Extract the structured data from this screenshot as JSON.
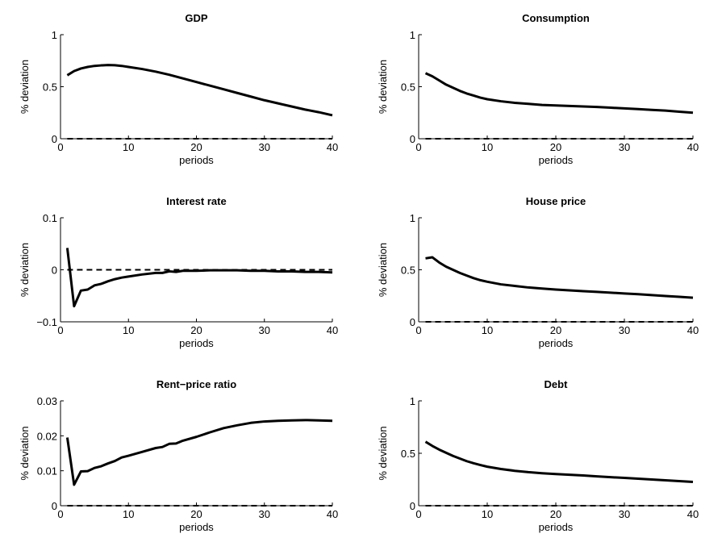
{
  "chart_data": [
    {
      "type": "line",
      "title": "GDP",
      "xlabel": "periods",
      "ylabel": "% deviation",
      "xlim": [
        0,
        40
      ],
      "ylim": [
        0,
        1
      ],
      "x_ticks": [
        "0",
        "10",
        "20",
        "30",
        "40"
      ],
      "y_ticks": [
        "0",
        "0.5",
        "1"
      ],
      "x": [
        1,
        2,
        3,
        4,
        5,
        6,
        7,
        8,
        9,
        10,
        12,
        14,
        16,
        18,
        20,
        22,
        24,
        26,
        28,
        30,
        32,
        34,
        36,
        38,
        40
      ],
      "series": [
        {
          "values": [
            0.61,
            0.65,
            0.675,
            0.69,
            0.7,
            0.705,
            0.708,
            0.706,
            0.7,
            0.69,
            0.67,
            0.645,
            0.615,
            0.58,
            0.545,
            0.51,
            0.475,
            0.44,
            0.405,
            0.37,
            0.34,
            0.31,
            0.28,
            0.255,
            0.225
          ],
          "style": "solid"
        },
        {
          "values": [
            0,
            0
          ],
          "x": [
            1,
            40
          ],
          "style": "dashed"
        }
      ]
    },
    {
      "type": "line",
      "title": "Consumption",
      "xlabel": "periods",
      "ylabel": "% deviation",
      "xlim": [
        0,
        40
      ],
      "ylim": [
        0,
        1
      ],
      "x_ticks": [
        "0",
        "10",
        "20",
        "30",
        "40"
      ],
      "y_ticks": [
        "0",
        "0.5",
        "1"
      ],
      "x": [
        1,
        2,
        3,
        4,
        5,
        6,
        7,
        8,
        9,
        10,
        12,
        14,
        16,
        18,
        20,
        22,
        24,
        26,
        28,
        30,
        32,
        34,
        36,
        38,
        40
      ],
      "series": [
        {
          "values": [
            0.63,
            0.6,
            0.56,
            0.52,
            0.49,
            0.46,
            0.435,
            0.415,
            0.395,
            0.38,
            0.36,
            0.345,
            0.335,
            0.325,
            0.32,
            0.315,
            0.31,
            0.305,
            0.298,
            0.292,
            0.285,
            0.277,
            0.27,
            0.26,
            0.25
          ],
          "style": "solid"
        },
        {
          "values": [
            0,
            0
          ],
          "x": [
            1,
            40
          ],
          "style": "dashed"
        }
      ]
    },
    {
      "type": "line",
      "title": "Interest rate",
      "xlabel": "periods",
      "ylabel": "% deviation",
      "xlim": [
        0,
        40
      ],
      "ylim": [
        -0.1,
        0.1
      ],
      "x_ticks": [
        "0",
        "10",
        "20",
        "30",
        "40"
      ],
      "y_ticks": [
        "−0.1",
        "0",
        "0.1"
      ],
      "x": [
        1,
        2,
        3,
        4,
        5,
        6,
        7,
        8,
        9,
        10,
        12,
        14,
        15,
        16,
        17,
        18,
        20,
        22,
        24,
        26,
        28,
        30,
        32,
        34,
        36,
        38,
        40
      ],
      "series": [
        {
          "values": [
            0.042,
            -0.07,
            -0.04,
            -0.038,
            -0.03,
            -0.027,
            -0.022,
            -0.018,
            -0.015,
            -0.013,
            -0.009,
            -0.006,
            -0.006,
            -0.003,
            -0.004,
            -0.002,
            -0.002,
            -0.001,
            -0.001,
            -0.001,
            -0.002,
            -0.002,
            -0.003,
            -0.003,
            -0.004,
            -0.004,
            -0.005
          ],
          "style": "solid"
        },
        {
          "values": [
            0,
            0
          ],
          "x": [
            1,
            40
          ],
          "style": "dashed"
        }
      ]
    },
    {
      "type": "line",
      "title": "House price",
      "xlabel": "periods",
      "ylabel": "% deviation",
      "xlim": [
        0,
        40
      ],
      "ylim": [
        0,
        1
      ],
      "x_ticks": [
        "0",
        "10",
        "20",
        "30",
        "40"
      ],
      "y_ticks": [
        "0",
        "0.5",
        "1"
      ],
      "x": [
        1,
        2,
        3,
        4,
        5,
        6,
        7,
        8,
        9,
        10,
        12,
        14,
        16,
        18,
        20,
        22,
        24,
        26,
        28,
        30,
        32,
        34,
        36,
        38,
        40
      ],
      "series": [
        {
          "values": [
            0.61,
            0.62,
            0.57,
            0.53,
            0.5,
            0.47,
            0.445,
            0.42,
            0.4,
            0.385,
            0.36,
            0.345,
            0.33,
            0.32,
            0.31,
            0.302,
            0.295,
            0.288,
            0.28,
            0.272,
            0.265,
            0.257,
            0.248,
            0.24,
            0.232
          ],
          "style": "solid"
        },
        {
          "values": [
            0,
            0
          ],
          "x": [
            1,
            40
          ],
          "style": "dashed"
        }
      ]
    },
    {
      "type": "line",
      "title": "Rent−price ratio",
      "xlabel": "periods",
      "ylabel": "% deviation",
      "xlim": [
        0,
        40
      ],
      "ylim": [
        0,
        0.03
      ],
      "x_ticks": [
        "0",
        "10",
        "20",
        "30",
        "40"
      ],
      "y_ticks": [
        "0",
        "0.01",
        "0.02",
        "0.03"
      ],
      "x": [
        1,
        2,
        3,
        4,
        5,
        6,
        7,
        8,
        9,
        10,
        12,
        14,
        15,
        16,
        17,
        18,
        20,
        22,
        24,
        26,
        28,
        30,
        32,
        34,
        36,
        38,
        40
      ],
      "series": [
        {
          "values": [
            0.0195,
            0.006,
            0.0098,
            0.0099,
            0.0108,
            0.0113,
            0.0121,
            0.0128,
            0.0138,
            0.0143,
            0.0154,
            0.0165,
            0.0168,
            0.0177,
            0.0178,
            0.0186,
            0.0197,
            0.021,
            0.0222,
            0.023,
            0.0237,
            0.0241,
            0.0243,
            0.0244,
            0.0245,
            0.0244,
            0.0243
          ],
          "style": "solid"
        },
        {
          "values": [
            0,
            0
          ],
          "x": [
            1,
            40
          ],
          "style": "dashed"
        }
      ]
    },
    {
      "type": "line",
      "title": "Debt",
      "xlabel": "periods",
      "ylabel": "% deviation",
      "xlim": [
        0,
        40
      ],
      "ylim": [
        0,
        1
      ],
      "x_ticks": [
        "0",
        "10",
        "20",
        "30",
        "40"
      ],
      "y_ticks": [
        "0",
        "0.5",
        "1"
      ],
      "x": [
        1,
        2,
        3,
        4,
        5,
        6,
        7,
        8,
        9,
        10,
        12,
        14,
        16,
        18,
        20,
        22,
        24,
        26,
        28,
        30,
        32,
        34,
        36,
        38,
        40
      ],
      "series": [
        {
          "values": [
            0.61,
            0.57,
            0.535,
            0.505,
            0.475,
            0.45,
            0.425,
            0.405,
            0.388,
            0.372,
            0.35,
            0.333,
            0.32,
            0.31,
            0.302,
            0.295,
            0.288,
            0.28,
            0.272,
            0.265,
            0.258,
            0.25,
            0.242,
            0.235,
            0.227
          ],
          "style": "solid"
        },
        {
          "values": [
            0,
            0
          ],
          "x": [
            1,
            40
          ],
          "style": "dashed"
        }
      ]
    }
  ]
}
